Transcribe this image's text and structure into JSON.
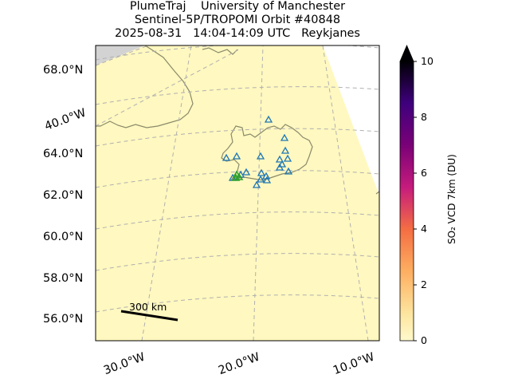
{
  "title": {
    "line1": "PlumeTraj    University of Manchester",
    "line2": "Sentinel-5P/TROPOMI Orbit #40848",
    "line3": "2025-08-31   14:04-14:09 UTC   Reykjanes"
  },
  "map": {
    "lat_labels": [
      "68.0°N",
      "64.0°N",
      "62.0°N",
      "60.0°N",
      "58.0°N",
      "56.0°N"
    ],
    "lon_labels_left": [
      "40.0°W"
    ],
    "lon_labels_bottom": [
      "30.0°W",
      "20.0°W",
      "10.0°W"
    ],
    "scale_bar": "300 km",
    "colors": {
      "background_field": "#fff8c0",
      "no_data": "#d3d3d3",
      "coastline": "#8a8a6a",
      "graticule": "#b0b0b0",
      "volcano_marker": "#1f77b4",
      "active_volcano_marker": "#2ca02c"
    },
    "markers": {
      "volcano_icon": "triangle-outline-icon",
      "active_icon": "triangle-outline-icon"
    }
  },
  "colorbar": {
    "label": "SO₂ VCD 7km (DU)",
    "ticks": [
      "0",
      "2",
      "4",
      "6",
      "8",
      "10"
    ],
    "min": 0,
    "max": 10,
    "extend": "max",
    "colormap": [
      "#fffacc",
      "#fdd49e",
      "#fc8d59",
      "#e34a33",
      "#b30053",
      "#7a0177",
      "#3f007d",
      "#000004"
    ]
  }
}
